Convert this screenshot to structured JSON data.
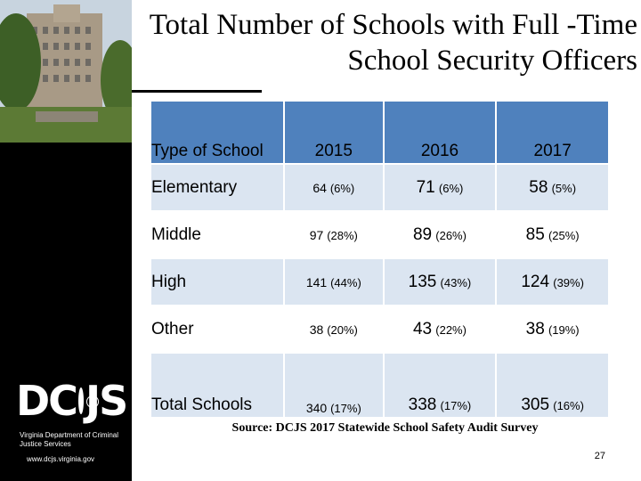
{
  "slide": {
    "title": "Total Number of Schools with Full -Time School Security Officers",
    "source": "Source: DCJS 2017 Statewide School Safety Audit Survey",
    "page_number": "27"
  },
  "sidebar": {
    "logo_left": "DC",
    "logo_right": "JS",
    "logo_label": "DCJS",
    "department": "Virginia Department of Criminal Justice Services",
    "website": "www.dcjs.virginia.gov"
  },
  "table": {
    "headers": [
      "Type of School",
      "2015",
      "2016",
      "2017"
    ],
    "rows": [
      {
        "type": "Elementary",
        "y2015": {
          "count": "64",
          "pct": "(6%)"
        },
        "y2016": {
          "count": "71",
          "pct": "(6%)"
        },
        "y2017": {
          "count": "58",
          "pct": "(5%)"
        }
      },
      {
        "type": "Middle",
        "y2015": {
          "count": "97",
          "pct": "(28%)"
        },
        "y2016": {
          "count": "89",
          "pct": "(26%)"
        },
        "y2017": {
          "count": "85",
          "pct": "(25%)"
        }
      },
      {
        "type": "High",
        "y2015": {
          "count": "141",
          "pct": "(44%)"
        },
        "y2016": {
          "count": "135",
          "pct": "(43%)"
        },
        "y2017": {
          "count": "124",
          "pct": "(39%)"
        }
      },
      {
        "type": "Other",
        "y2015": {
          "count": "38",
          "pct": "(20%)"
        },
        "y2016": {
          "count": "43",
          "pct": "(22%)"
        },
        "y2017": {
          "count": "38",
          "pct": "(19%)"
        }
      },
      {
        "type": "Total Schools",
        "y2015": {
          "count": "340",
          "pct": "(17%)"
        },
        "y2016": {
          "count": "338",
          "pct": "(17%)"
        },
        "y2017": {
          "count": "305",
          "pct": "(16%)"
        }
      }
    ]
  },
  "colors": {
    "header_fill": "#4f81bd",
    "band_fill": "#dbe5f1",
    "sidebar_bg": "#000000"
  }
}
